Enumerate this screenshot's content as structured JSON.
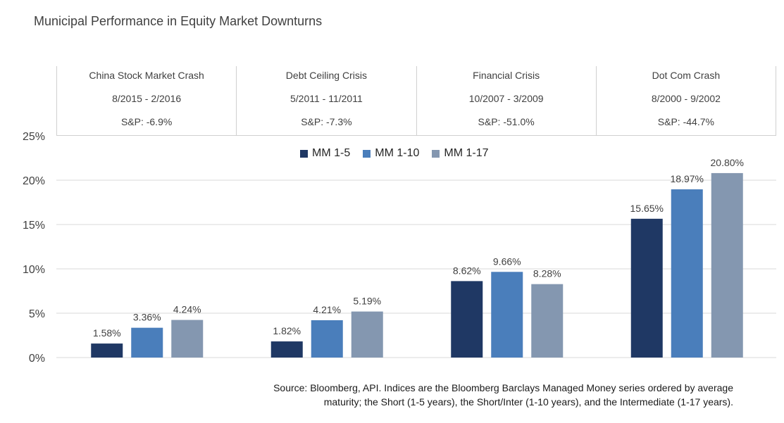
{
  "title": "Municipal Performance in Equity Market Downturns",
  "headers": [
    {
      "name": "China Stock Market Crash",
      "period": "8/2015 - 2/2016",
      "sp": "S&P: -6.9%"
    },
    {
      "name": "Debt Ceiling Crisis",
      "period": "5/2011 - 11/2011",
      "sp": "S&P: -7.3%"
    },
    {
      "name": "Financial Crisis",
      "period": "10/2007 - 3/2009",
      "sp": "S&P: -51.0%"
    },
    {
      "name": "Dot Com Crash",
      "period": "8/2000 - 9/2002",
      "sp": "S&P: -44.7%"
    }
  ],
  "source_line1": "Source:  Bloomberg, API. Indices are the Bloomberg Barclays Managed Money series ordered by average",
  "source_line2": "maturity; the Short (1-5 years), the Short/Inter (1-10 years), and the Intermediate (1-17 years).",
  "chart_data": {
    "type": "bar",
    "categories": [
      "China Stock Market Crash",
      "Debt Ceiling Crisis",
      "Financial Crisis",
      "Dot Com Crash"
    ],
    "series": [
      {
        "name": "MM 1-5",
        "values": [
          1.58,
          1.82,
          8.62,
          15.65
        ],
        "labels": [
          "1.58%",
          "1.82%",
          "8.62%",
          "15.65%"
        ],
        "color": "#1f3864"
      },
      {
        "name": "MM 1-10",
        "values": [
          3.36,
          4.21,
          9.66,
          18.97
        ],
        "labels": [
          "3.36%",
          "4.21%",
          "9.66%",
          "18.97%"
        ],
        "color": "#4a7ebb"
      },
      {
        "name": "MM 1-17",
        "values": [
          4.24,
          5.19,
          8.28,
          20.8
        ],
        "labels": [
          "4.24%",
          "5.19%",
          "8.28%",
          "20.80%"
        ],
        "color": "#8497b0"
      }
    ],
    "yticks": [
      "0%",
      "5%",
      "10%",
      "15%",
      "20%",
      "25%"
    ],
    "ylim": [
      0,
      25
    ],
    "grid": true,
    "legend": "top-center"
  }
}
